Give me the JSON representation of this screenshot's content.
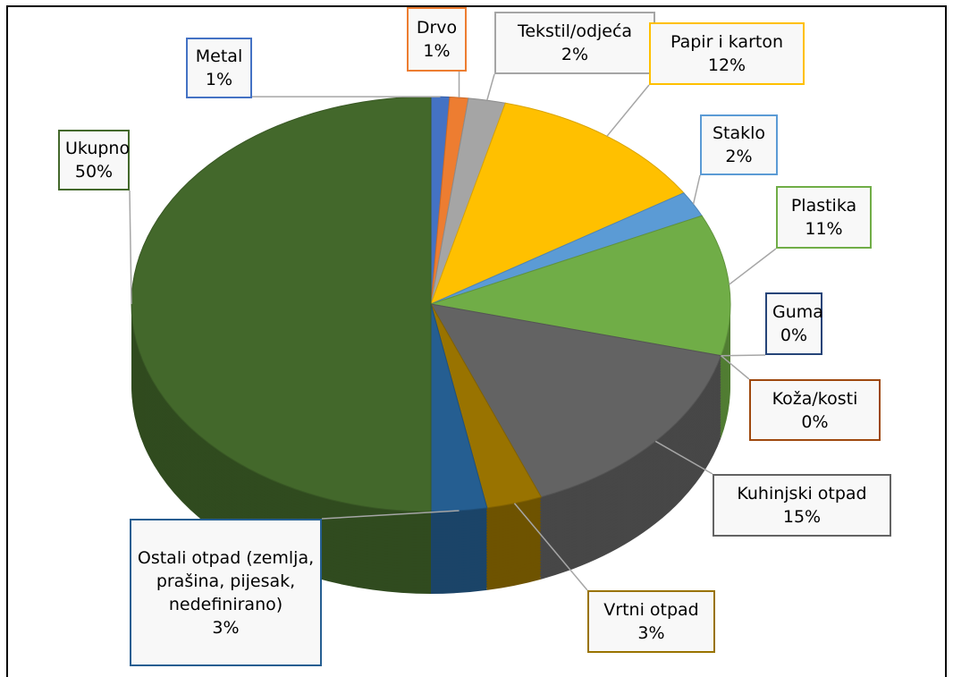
{
  "chart_data": {
    "type": "pie",
    "categories": [
      "Metal",
      "Drvo",
      "Tekstil/odjeća",
      "Papir i karton",
      "Staklo",
      "Plastika",
      "Guma",
      "Koža/kosti",
      "Kuhinjski otpad",
      "Vrtni otpad",
      "Ostali otpad (zemlja, prašina, pijesak, nedefinirano)",
      "Ukupno"
    ],
    "values": [
      1,
      1,
      2,
      12,
      2,
      11,
      0,
      0,
      15,
      3,
      3,
      50
    ],
    "value_labels": [
      "1%",
      "1%",
      "2%",
      "12%",
      "2%",
      "11%",
      "0%",
      "0%",
      "15%",
      "3%",
      "3%",
      "50%"
    ],
    "colors": [
      "#4472c4",
      "#ed7d31",
      "#a5a5a5",
      "#ffc000",
      "#5b9bd5",
      "#70ad47",
      "#264478",
      "#9e480e",
      "#636363",
      "#997300",
      "#255e91",
      "#43682b"
    ]
  }
}
